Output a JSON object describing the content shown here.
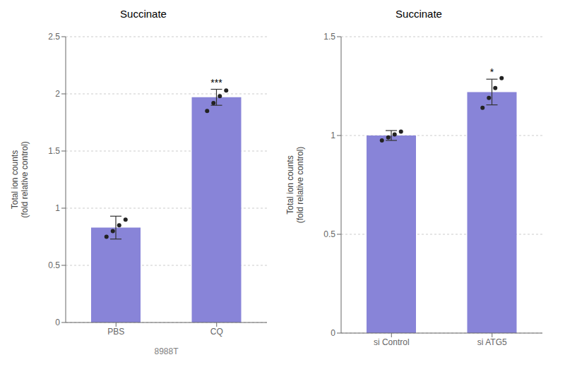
{
  "chart_data": [
    {
      "type": "bar",
      "title": "Succinate",
      "ylabel": "Total ion counts\n(fold relative control)",
      "xlabel": "8988T",
      "categories": [
        "PBS",
        "CQ"
      ],
      "values": [
        0.83,
        1.97
      ],
      "errors": [
        0.1,
        0.07
      ],
      "points": [
        [
          0.75,
          0.8,
          0.85,
          0.9
        ],
        [
          1.85,
          1.92,
          1.98,
          2.03
        ]
      ],
      "ylim": [
        0.0,
        2.5
      ],
      "yticks": [
        0,
        0.5,
        1,
        1.5,
        2,
        2.5
      ],
      "annotations": [
        {
          "text": "***",
          "category": "CQ"
        }
      ]
    },
    {
      "type": "bar",
      "title": "Succinate",
      "ylabel": "Total ion counts\n(fold relative control)",
      "categories": [
        "si Control",
        "si ATG5"
      ],
      "values": [
        1.0,
        1.22
      ],
      "errors": [
        0.025,
        0.065
      ],
      "points": [
        [
          0.975,
          0.99,
          1.005,
          1.02
        ],
        [
          1.14,
          1.19,
          1.24,
          1.29
        ]
      ],
      "ylim": [
        0.0,
        1.5
      ],
      "yticks": [
        0,
        0.5,
        1,
        1.5
      ],
      "annotations": [
        {
          "text": "*",
          "category": "si ATG5"
        }
      ]
    }
  ]
}
